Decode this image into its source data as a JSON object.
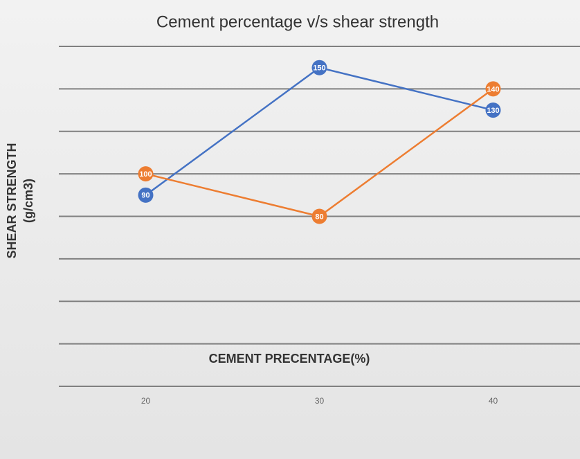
{
  "chart_data": {
    "type": "line",
    "title": "Cement percentage v/s shear strength",
    "xlabel": "CEMENT PRECENTAGE(%)",
    "ylabel_lines": [
      "SHEAR STRENGTH",
      "(g/cm3)"
    ],
    "categories": [
      "20",
      "30",
      "40"
    ],
    "series": [
      {
        "color": "#4472c4",
        "values": [
          90,
          150,
          130
        ]
      },
      {
        "color": "#ed7d31",
        "values": [
          100,
          80,
          140
        ]
      }
    ],
    "ylim": [
      0,
      160
    ],
    "yticks": [
      0,
      20,
      40,
      60,
      80,
      100,
      120,
      140,
      160
    ],
    "grid": true,
    "data_labels": true
  }
}
